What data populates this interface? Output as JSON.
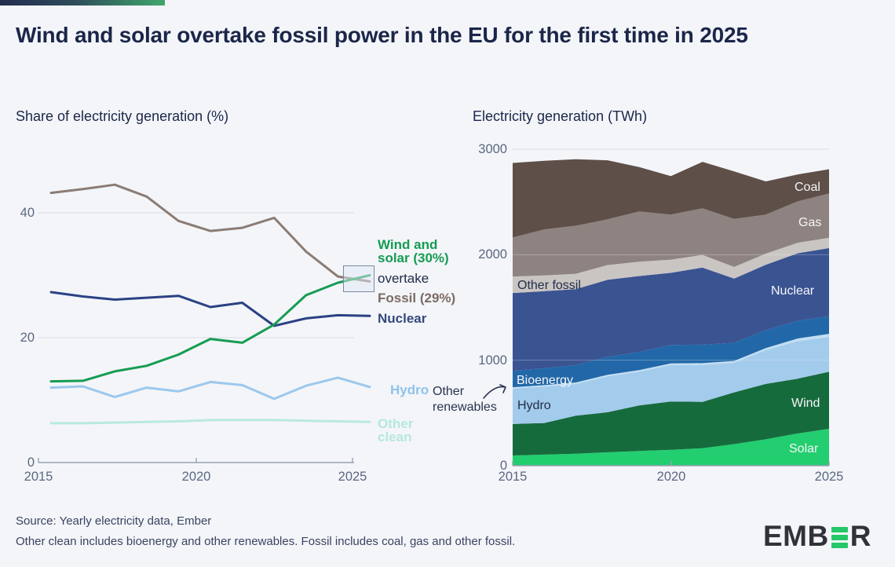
{
  "page": {
    "title": "Wind and solar overtake fossil power in the EU for the first time in 2025",
    "background": "#F3F5F9",
    "accent_gradient": [
      "#232C4E",
      "#3FA76B"
    ]
  },
  "chart_data": [
    {
      "type": "line",
      "title": "Share of electricity generation (%)",
      "unit": "%",
      "x": [
        2015,
        2016,
        2017,
        2018,
        2019,
        2020,
        2021,
        2022,
        2023,
        2024,
        2025
      ],
      "x_tick_labels": [
        "2015",
        "2020",
        "2025"
      ],
      "y_tick_labels": [
        "0",
        "20",
        "40"
      ],
      "ylim": [
        0,
        46
      ],
      "y_gridlines": [
        20,
        40
      ],
      "legend_position": "inline-right",
      "series": [
        {
          "name": "Other clean",
          "color": "#B9E9DD",
          "values": [
            6.3,
            6.3,
            6.4,
            6.5,
            6.6,
            6.8,
            6.8,
            6.8,
            6.7,
            6.6,
            6.5
          ]
        },
        {
          "name": "Hydro",
          "color": "#9CC8EC",
          "values": [
            12.0,
            12.2,
            10.5,
            12.0,
            11.4,
            12.9,
            12.4,
            10.2,
            12.3,
            13.6,
            12.1
          ]
        },
        {
          "name": "Nuclear",
          "color": "#2B4184",
          "values": [
            27.3,
            26.6,
            26.1,
            26.4,
            26.7,
            24.9,
            25.6,
            21.9,
            23.1,
            23.6,
            23.5
          ]
        },
        {
          "name": "Fossil",
          "color": "#8C7C74",
          "values": [
            43.2,
            43.8,
            44.5,
            42.6,
            38.7,
            37.1,
            37.6,
            39.2,
            33.8,
            29.8,
            29.0
          ]
        },
        {
          "name": "Wind and solar",
          "color": "#169C52",
          "values": [
            13.0,
            13.1,
            14.6,
            15.5,
            17.3,
            19.8,
            19.2,
            22.1,
            26.8,
            28.8,
            30.0
          ]
        }
      ],
      "labels": {
        "wind_solar": "Wind and solar (30%)",
        "overtake": "overtake",
        "fossil": "Fossil (29%)",
        "nuclear": "Nuclear",
        "hydro": "Hydro",
        "other_clean": "Other clean"
      },
      "highlight": "wind-and-solar-cross-fossil-2025"
    },
    {
      "type": "area",
      "title": "Electricity generation (TWh)",
      "unit": "TWh",
      "x": [
        2015,
        2016,
        2017,
        2018,
        2019,
        2020,
        2021,
        2022,
        2023,
        2024,
        2025
      ],
      "x_tick_labels": [
        "2015",
        "2020",
        "2025"
      ],
      "y_tick_labels": [
        "0",
        "1000",
        "2000",
        "3000"
      ],
      "ylim": [
        0,
        3000
      ],
      "y_gridlines": [
        1000,
        2000,
        3000
      ],
      "series": [
        {
          "name": "Solar",
          "color": "#22CE6F",
          "values": [
            97,
            105,
            114,
            127,
            140,
            151,
            165,
            205,
            250,
            305,
            350
          ]
        },
        {
          "name": "Wind",
          "color": "#166B3D",
          "values": [
            298,
            300,
            360,
            380,
            432,
            458,
            440,
            490,
            525,
            520,
            540
          ]
        },
        {
          "name": "Hydro",
          "color": "#A3CBEC",
          "values": [
            335,
            345,
            300,
            340,
            318,
            345,
            350,
            280,
            320,
            355,
            330
          ]
        },
        {
          "name": "Other renewables",
          "color": "#C3DEF3",
          "values": [
            14,
            14,
            15,
            15,
            16,
            16,
            17,
            18,
            20,
            25,
            30
          ]
        },
        {
          "name": "Bioenergy",
          "color": "#2268A8",
          "values": [
            156,
            160,
            165,
            170,
            172,
            175,
            175,
            172,
            170,
            168,
            168
          ]
        },
        {
          "name": "Nuclear",
          "color": "#3A5391",
          "values": [
            737,
            730,
            720,
            730,
            720,
            683,
            731,
            609,
            620,
            640,
            645
          ]
        },
        {
          "name": "Other fossil",
          "color": "#C9C5C3",
          "values": [
            156,
            150,
            145,
            140,
            135,
            125,
            120,
            110,
            105,
            100,
            97
          ]
        },
        {
          "name": "Gas",
          "color": "#8E8380",
          "values": [
            370,
            436,
            456,
            433,
            477,
            427,
            442,
            456,
            370,
            392,
            420
          ]
        },
        {
          "name": "Coal",
          "color": "#5E4F48",
          "values": [
            707,
            650,
            630,
            560,
            420,
            365,
            440,
            450,
            315,
            255,
            230
          ]
        }
      ],
      "annotation": {
        "text": "Other renewables",
        "target": "other-renewables-band"
      }
    }
  ],
  "footer": {
    "source": "Source: Yearly electricity data, Ember",
    "note": "Other clean includes bioenergy and other renewables. Fossil includes coal, gas and other fossil."
  },
  "branding": {
    "logo_prefix": "EMB",
    "logo_suffix": "R",
    "logo_green": "#25C868"
  }
}
